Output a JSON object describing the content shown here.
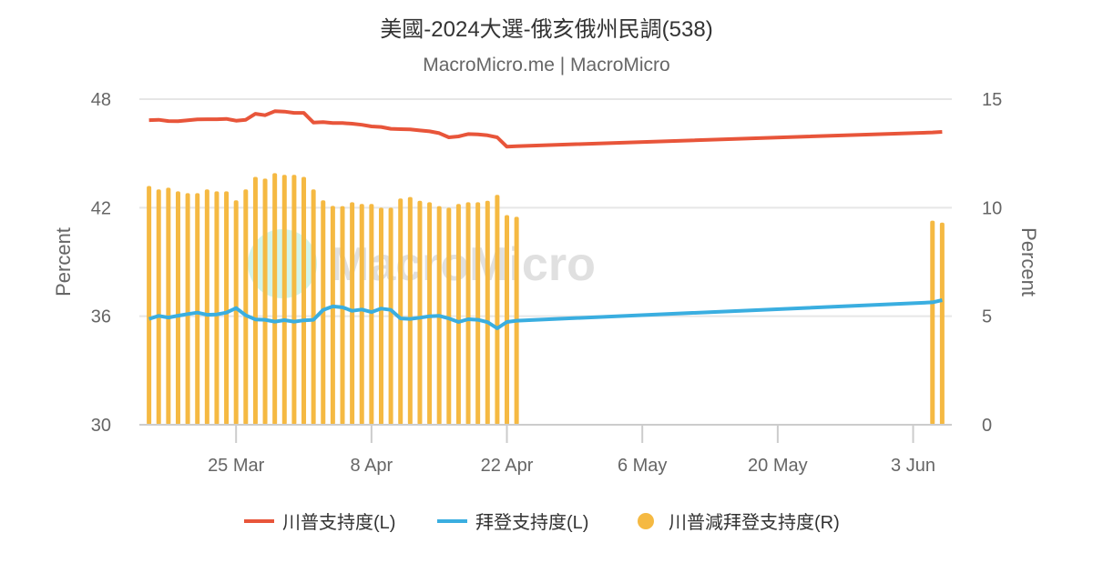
{
  "chart_data": {
    "type": "bar+line",
    "title": "美國-2024大選-俄亥俄州民調(538)",
    "subtitle": "MacroMicro.me | MacroMicro",
    "watermark": "MacroMicro",
    "ylabel_left": "Percent",
    "ylabel_right": "Percent",
    "ylim_left": [
      30,
      48
    ],
    "ylim_right": [
      0,
      15
    ],
    "yticks_left": [
      "30",
      "36",
      "42",
      "48"
    ],
    "yticks_right": [
      "0",
      "5",
      "10",
      "15"
    ],
    "xlim": [
      "2024-03-15",
      "2024-06-07"
    ],
    "xticks": [
      {
        "date": "2024-03-25",
        "label": "25 Mar"
      },
      {
        "date": "2024-04-08",
        "label": "8 Apr"
      },
      {
        "date": "2024-04-22",
        "label": "22 Apr"
      },
      {
        "date": "2024-05-06",
        "label": "6 May"
      },
      {
        "date": "2024-05-20",
        "label": "20 May"
      },
      {
        "date": "2024-06-03",
        "label": "3 Jun"
      }
    ],
    "grid": true,
    "legend_position": "bottom",
    "dates": [
      "2024-03-16",
      "2024-03-17",
      "2024-03-18",
      "2024-03-19",
      "2024-03-20",
      "2024-03-21",
      "2024-03-22",
      "2024-03-23",
      "2024-03-24",
      "2024-03-25",
      "2024-03-26",
      "2024-03-27",
      "2024-03-28",
      "2024-03-29",
      "2024-03-30",
      "2024-03-31",
      "2024-04-01",
      "2024-04-02",
      "2024-04-03",
      "2024-04-04",
      "2024-04-05",
      "2024-04-06",
      "2024-04-07",
      "2024-04-08",
      "2024-04-09",
      "2024-04-10",
      "2024-04-11",
      "2024-04-12",
      "2024-04-13",
      "2024-04-14",
      "2024-04-15",
      "2024-04-16",
      "2024-04-17",
      "2024-04-18",
      "2024-04-19",
      "2024-04-20",
      "2024-04-21",
      "2024-04-22",
      "2024-04-23",
      "2024-06-05",
      "2024-06-06"
    ],
    "series": [
      {
        "name": "川普支持度(L)",
        "type": "line",
        "axis": "left",
        "color": "#e8553a",
        "values": [
          46.84,
          46.86,
          46.79,
          46.78,
          46.83,
          46.88,
          46.89,
          46.89,
          46.91,
          46.81,
          46.86,
          47.19,
          47.11,
          47.33,
          47.31,
          47.24,
          47.24,
          46.71,
          46.73,
          46.68,
          46.68,
          46.64,
          46.58,
          46.49,
          46.46,
          46.36,
          46.34,
          46.33,
          46.27,
          46.22,
          46.12,
          45.89,
          45.94,
          46.07,
          46.05,
          46.0,
          45.89,
          45.37,
          45.4,
          46.16,
          46.19
        ]
      },
      {
        "name": "拜登支持度(L)",
        "type": "line",
        "axis": "left",
        "color": "#3aaee0",
        "values": [
          35.85,
          36.02,
          35.93,
          36.03,
          36.12,
          36.2,
          36.08,
          36.1,
          36.2,
          36.45,
          36.05,
          35.82,
          35.8,
          35.7,
          35.78,
          35.7,
          35.77,
          35.8,
          36.35,
          36.54,
          36.49,
          36.3,
          36.37,
          36.23,
          36.42,
          36.35,
          35.88,
          35.85,
          35.92,
          36.0,
          36.02,
          35.88,
          35.68,
          35.83,
          35.8,
          35.67,
          35.33,
          35.68,
          35.75,
          36.77,
          36.89
        ]
      },
      {
        "name": "川普減拜登支持度(R)",
        "type": "bar",
        "axis": "right",
        "color": "#f5b942",
        "values": [
          11.0,
          10.84,
          10.92,
          10.75,
          10.67,
          10.67,
          10.84,
          10.75,
          10.75,
          10.34,
          10.84,
          11.42,
          11.34,
          11.59,
          11.51,
          11.51,
          11.42,
          10.84,
          10.34,
          10.08,
          10.07,
          10.25,
          10.17,
          10.17,
          10.0,
          10.0,
          10.42,
          10.49,
          10.32,
          10.25,
          10.07,
          10.0,
          10.17,
          10.25,
          10.25,
          10.32,
          10.59,
          9.66,
          9.58,
          9.4,
          9.31
        ]
      }
    ]
  }
}
